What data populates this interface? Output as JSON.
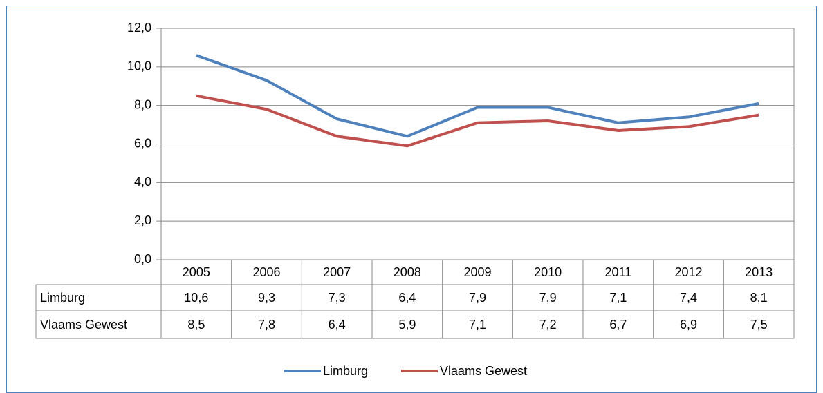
{
  "chart_data": {
    "type": "line",
    "categories": [
      "2005",
      "2006",
      "2007",
      "2008",
      "2009",
      "2010",
      "2011",
      "2012",
      "2013"
    ],
    "series": [
      {
        "name": "Limburg",
        "color": "#4f81bd",
        "values": [
          10.6,
          9.3,
          7.3,
          6.4,
          7.9,
          7.9,
          7.1,
          7.4,
          8.1
        ],
        "value_labels": [
          "10,6",
          "9,3",
          "7,3",
          "6,4",
          "7,9",
          "7,9",
          "7,1",
          "7,4",
          "8,1"
        ]
      },
      {
        "name": "Vlaams Gewest",
        "color": "#c0504d",
        "values": [
          8.5,
          7.8,
          6.4,
          5.9,
          7.1,
          7.2,
          6.7,
          6.9,
          7.5
        ],
        "value_labels": [
          "8,5",
          "7,8",
          "6,4",
          "5,9",
          "7,1",
          "7,2",
          "6,7",
          "6,9",
          "7,5"
        ]
      }
    ],
    "ylim": [
      0,
      12
    ],
    "yticks": [
      {
        "value": 0,
        "label": "0,0"
      },
      {
        "value": 2,
        "label": "2,0"
      },
      {
        "value": 4,
        "label": "4,0"
      },
      {
        "value": 6,
        "label": "6,0"
      },
      {
        "value": 8,
        "label": "8,0"
      },
      {
        "value": 10,
        "label": "10,0"
      },
      {
        "value": 12,
        "label": "12,0"
      }
    ],
    "grid": true,
    "legend": "bottom"
  }
}
